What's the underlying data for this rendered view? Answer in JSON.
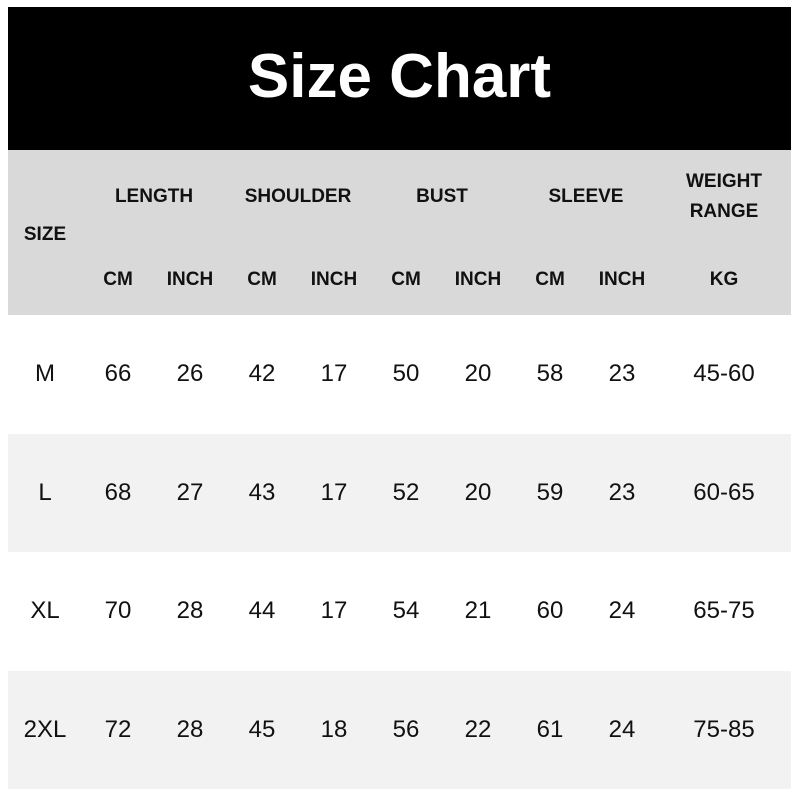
{
  "title": "Size Chart",
  "header": {
    "size": "SIZE",
    "groups": [
      "LENGTH",
      "SHOULDER",
      "BUST",
      "SLEEVE"
    ],
    "weight_line1": "WEIGHT",
    "weight_line2": "RANGE",
    "units": [
      "CM",
      "INCH",
      "CM",
      "INCH",
      "CM",
      "INCH",
      "CM",
      "INCH",
      "KG"
    ]
  },
  "rows": [
    [
      "M",
      "66",
      "26",
      "42",
      "17",
      "50",
      "20",
      "58",
      "23",
      "45-60"
    ],
    [
      "L",
      "68",
      "27",
      "43",
      "17",
      "52",
      "20",
      "59",
      "23",
      "60-65"
    ],
    [
      "XL",
      "70",
      "28",
      "44",
      "17",
      "54",
      "21",
      "60",
      "24",
      "65-75"
    ],
    [
      "2XL",
      "72",
      "28",
      "45",
      "18",
      "56",
      "22",
      "61",
      "24",
      "75-85"
    ]
  ]
}
